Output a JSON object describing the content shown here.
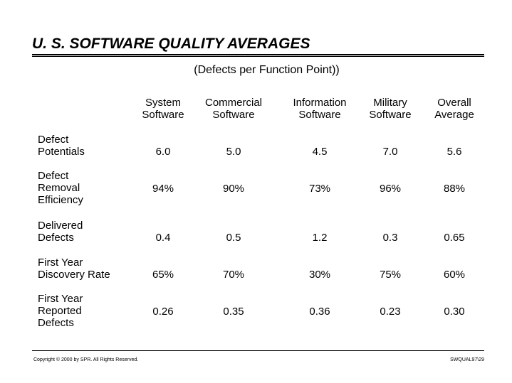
{
  "title": "U. S. SOFTWARE QUALITY AVERAGES",
  "subtitle": "(Defects per Function Point))",
  "columns": [
    "System\nSoftware",
    "Commercial\nSoftware",
    "Information\nSoftware",
    "Military\nSoftware",
    "Overall\nAverage"
  ],
  "rows": [
    {
      "label": "Defect\nPotentials",
      "values": [
        "6.0",
        "5.0",
        "4.5",
        "7.0",
        "5.6"
      ]
    },
    {
      "label": "Defect\nRemoval\nEfficiency",
      "values": [
        "94%",
        "90%",
        "73%",
        "96%",
        "88%"
      ]
    },
    {
      "label": "Delivered\nDefects",
      "values": [
        "0.4",
        "0.5",
        "1.2",
        "0.3",
        "0.65"
      ]
    },
    {
      "label": "First Year\nDiscovery Rate",
      "values": [
        "65%",
        "70%",
        "30%",
        "75%",
        "60%"
      ]
    },
    {
      "label": "First Year\nReported\nDefects",
      "values": [
        "0.26",
        "0.35",
        "0.36",
        "0.23",
        "0.30"
      ]
    }
  ],
  "footer": {
    "copyright": "Copyright © 2000 by SPR.  All Rights Reserved.",
    "slide_id": "SWQUAL97\\29"
  }
}
